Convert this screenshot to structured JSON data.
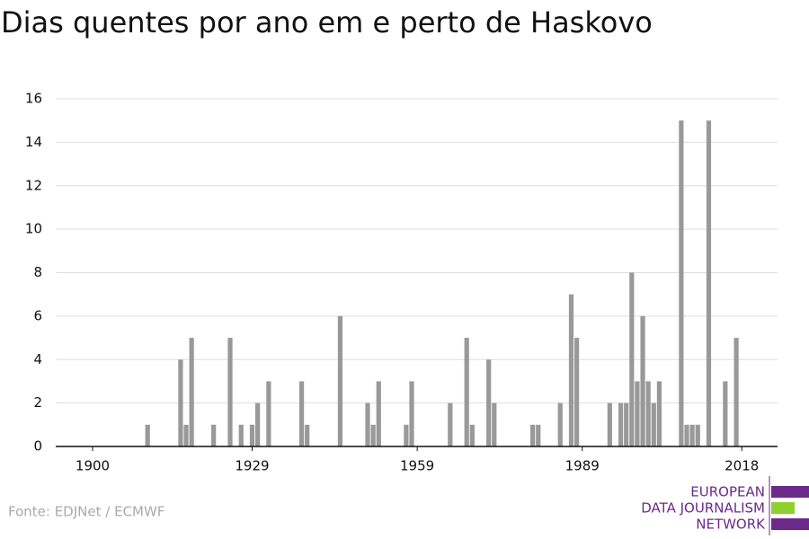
{
  "chart_data": {
    "type": "bar",
    "title": "Dias quentes por ano em e perto de Haskovo",
    "source": "Fonte: EDJNet / ECMWF",
    "logo": [
      "EUROPEAN",
      "DATA JOURNALISM",
      "NETWORK"
    ],
    "x": [
      1910,
      1916,
      1917,
      1918,
      1922,
      1925,
      1927,
      1929,
      1930,
      1932,
      1938,
      1939,
      1945,
      1950,
      1951,
      1952,
      1957,
      1958,
      1965,
      1968,
      1969,
      1972,
      1973,
      1980,
      1981,
      1985,
      1987,
      1988,
      1994,
      1996,
      1997,
      1998,
      1999,
      2000,
      2001,
      2002,
      2003,
      2007,
      2008,
      2009,
      2010,
      2012,
      2015,
      2017
    ],
    "values": [
      1,
      4,
      1,
      5,
      1,
      5,
      1,
      1,
      2,
      3,
      3,
      1,
      6,
      2,
      1,
      3,
      1,
      3,
      2,
      5,
      1,
      4,
      2,
      1,
      1,
      2,
      7,
      5,
      2,
      2,
      2,
      8,
      3,
      6,
      3,
      2,
      3,
      15,
      1,
      1,
      1,
      15,
      3,
      5
    ],
    "color": "#999999",
    "xlim": [
      1893.3,
      2024.5
    ],
    "xticks": [
      1900,
      1929,
      1959,
      1989,
      2018
    ],
    "ylim": [
      0,
      16
    ],
    "yticks": [
      0,
      2,
      4,
      6,
      8,
      10,
      12,
      14,
      16
    ],
    "grid": true
  }
}
